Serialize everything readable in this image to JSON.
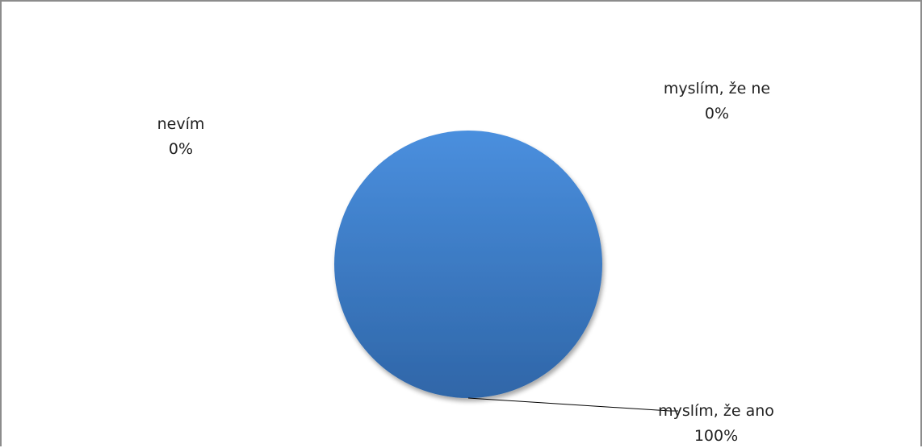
{
  "chart_data": {
    "type": "pie",
    "title": "",
    "categories": [
      "myslím, že ano",
      "myslím, že ne",
      "nevím"
    ],
    "values": [
      100,
      0,
      0
    ],
    "data_labels": [
      {
        "category": "myslím, že ano",
        "value_text": "100%"
      },
      {
        "category": "myslím, že ne",
        "value_text": "0%"
      },
      {
        "category": "nevím",
        "value_text": "0%"
      }
    ],
    "colors": {
      "slice_light": "#4a8fde",
      "slice_dark": "#2f66a8",
      "leader_line": "#000000",
      "frame": "#8c8c8c"
    },
    "legend": "none"
  }
}
